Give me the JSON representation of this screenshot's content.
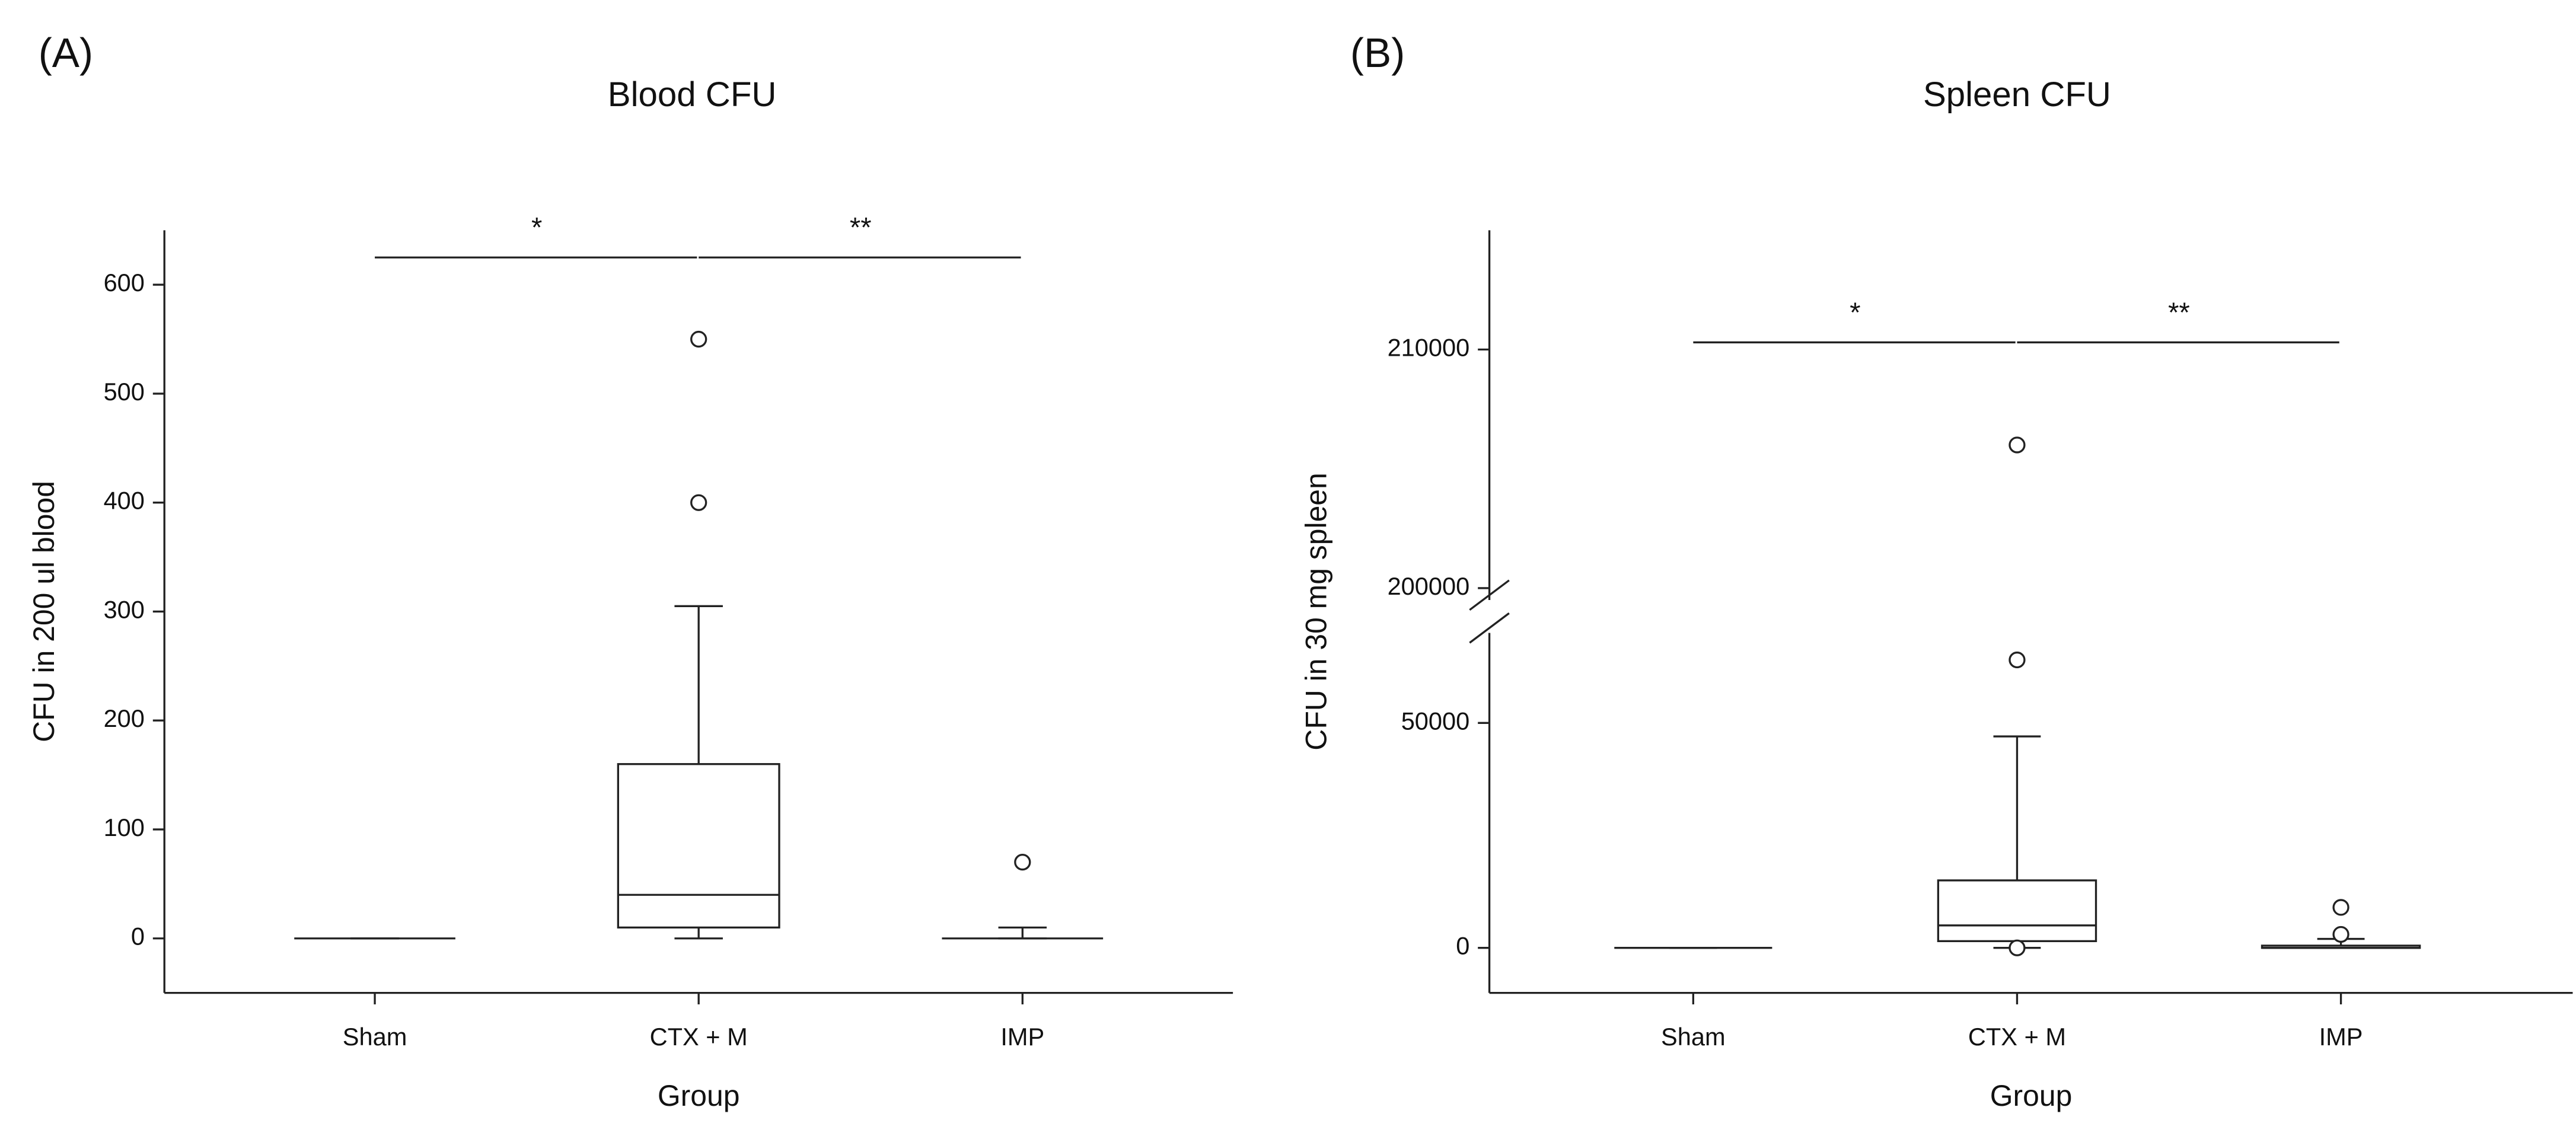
{
  "chart_data": [
    {
      "type": "box",
      "panel": "(A)",
      "title": "Blood CFU",
      "xlabel": "Group",
      "ylabel": "CFU in 200 ul blood",
      "categories": [
        "Sham",
        "CTX + M",
        "IMP"
      ],
      "boxes": [
        {
          "whislo": 0,
          "q1": 0,
          "med": 0,
          "q3": 0,
          "whishi": 0,
          "fliers": []
        },
        {
          "whislo": 0,
          "q1": 10,
          "med": 40,
          "q3": 160,
          "whishi": 305,
          "fliers": [
            400,
            550
          ]
        },
        {
          "whislo": 0,
          "q1": 0,
          "med": 0,
          "q3": 0,
          "whishi": 10,
          "fliers": [
            70
          ]
        }
      ],
      "ylim": [
        -50,
        650
      ],
      "yticks": [
        0,
        100,
        200,
        300,
        400,
        500,
        600
      ],
      "annotations": [
        {
          "text": "*",
          "from": 0,
          "to": 1,
          "y": 625
        },
        {
          "text": "**",
          "from": 1,
          "to": 2,
          "y": 625
        }
      ]
    },
    {
      "type": "box",
      "panel": "(B)",
      "title": "Spleen CFU",
      "xlabel": "Group",
      "ylabel": "CFU in 30 mg spleen",
      "categories": [
        "Sham",
        "CTX + M",
        "IMP"
      ],
      "boxes": [
        {
          "whislo": 0,
          "q1": 0,
          "med": 0,
          "q3": 0,
          "whishi": 0,
          "fliers": []
        },
        {
          "whislo": 0,
          "q1": 1500,
          "med": 5000,
          "q3": 15000,
          "whishi": 47000,
          "fliers": [
            0,
            64000,
            206000
          ]
        },
        {
          "whislo": 0,
          "q1": 0,
          "med": 0,
          "q3": 500,
          "whishi": 2000,
          "fliers": [
            3000,
            9000
          ]
        }
      ],
      "ylim": [
        -10000,
        215000
      ],
      "axis_break": [
        70000,
        199500
      ],
      "yticks": [
        0,
        50000,
        200000,
        210000
      ],
      "annotations": [
        {
          "text": "*",
          "from": 0,
          "to": 1,
          "y": 210300
        },
        {
          "text": "**",
          "from": 1,
          "to": 2,
          "y": 210300
        }
      ]
    }
  ]
}
